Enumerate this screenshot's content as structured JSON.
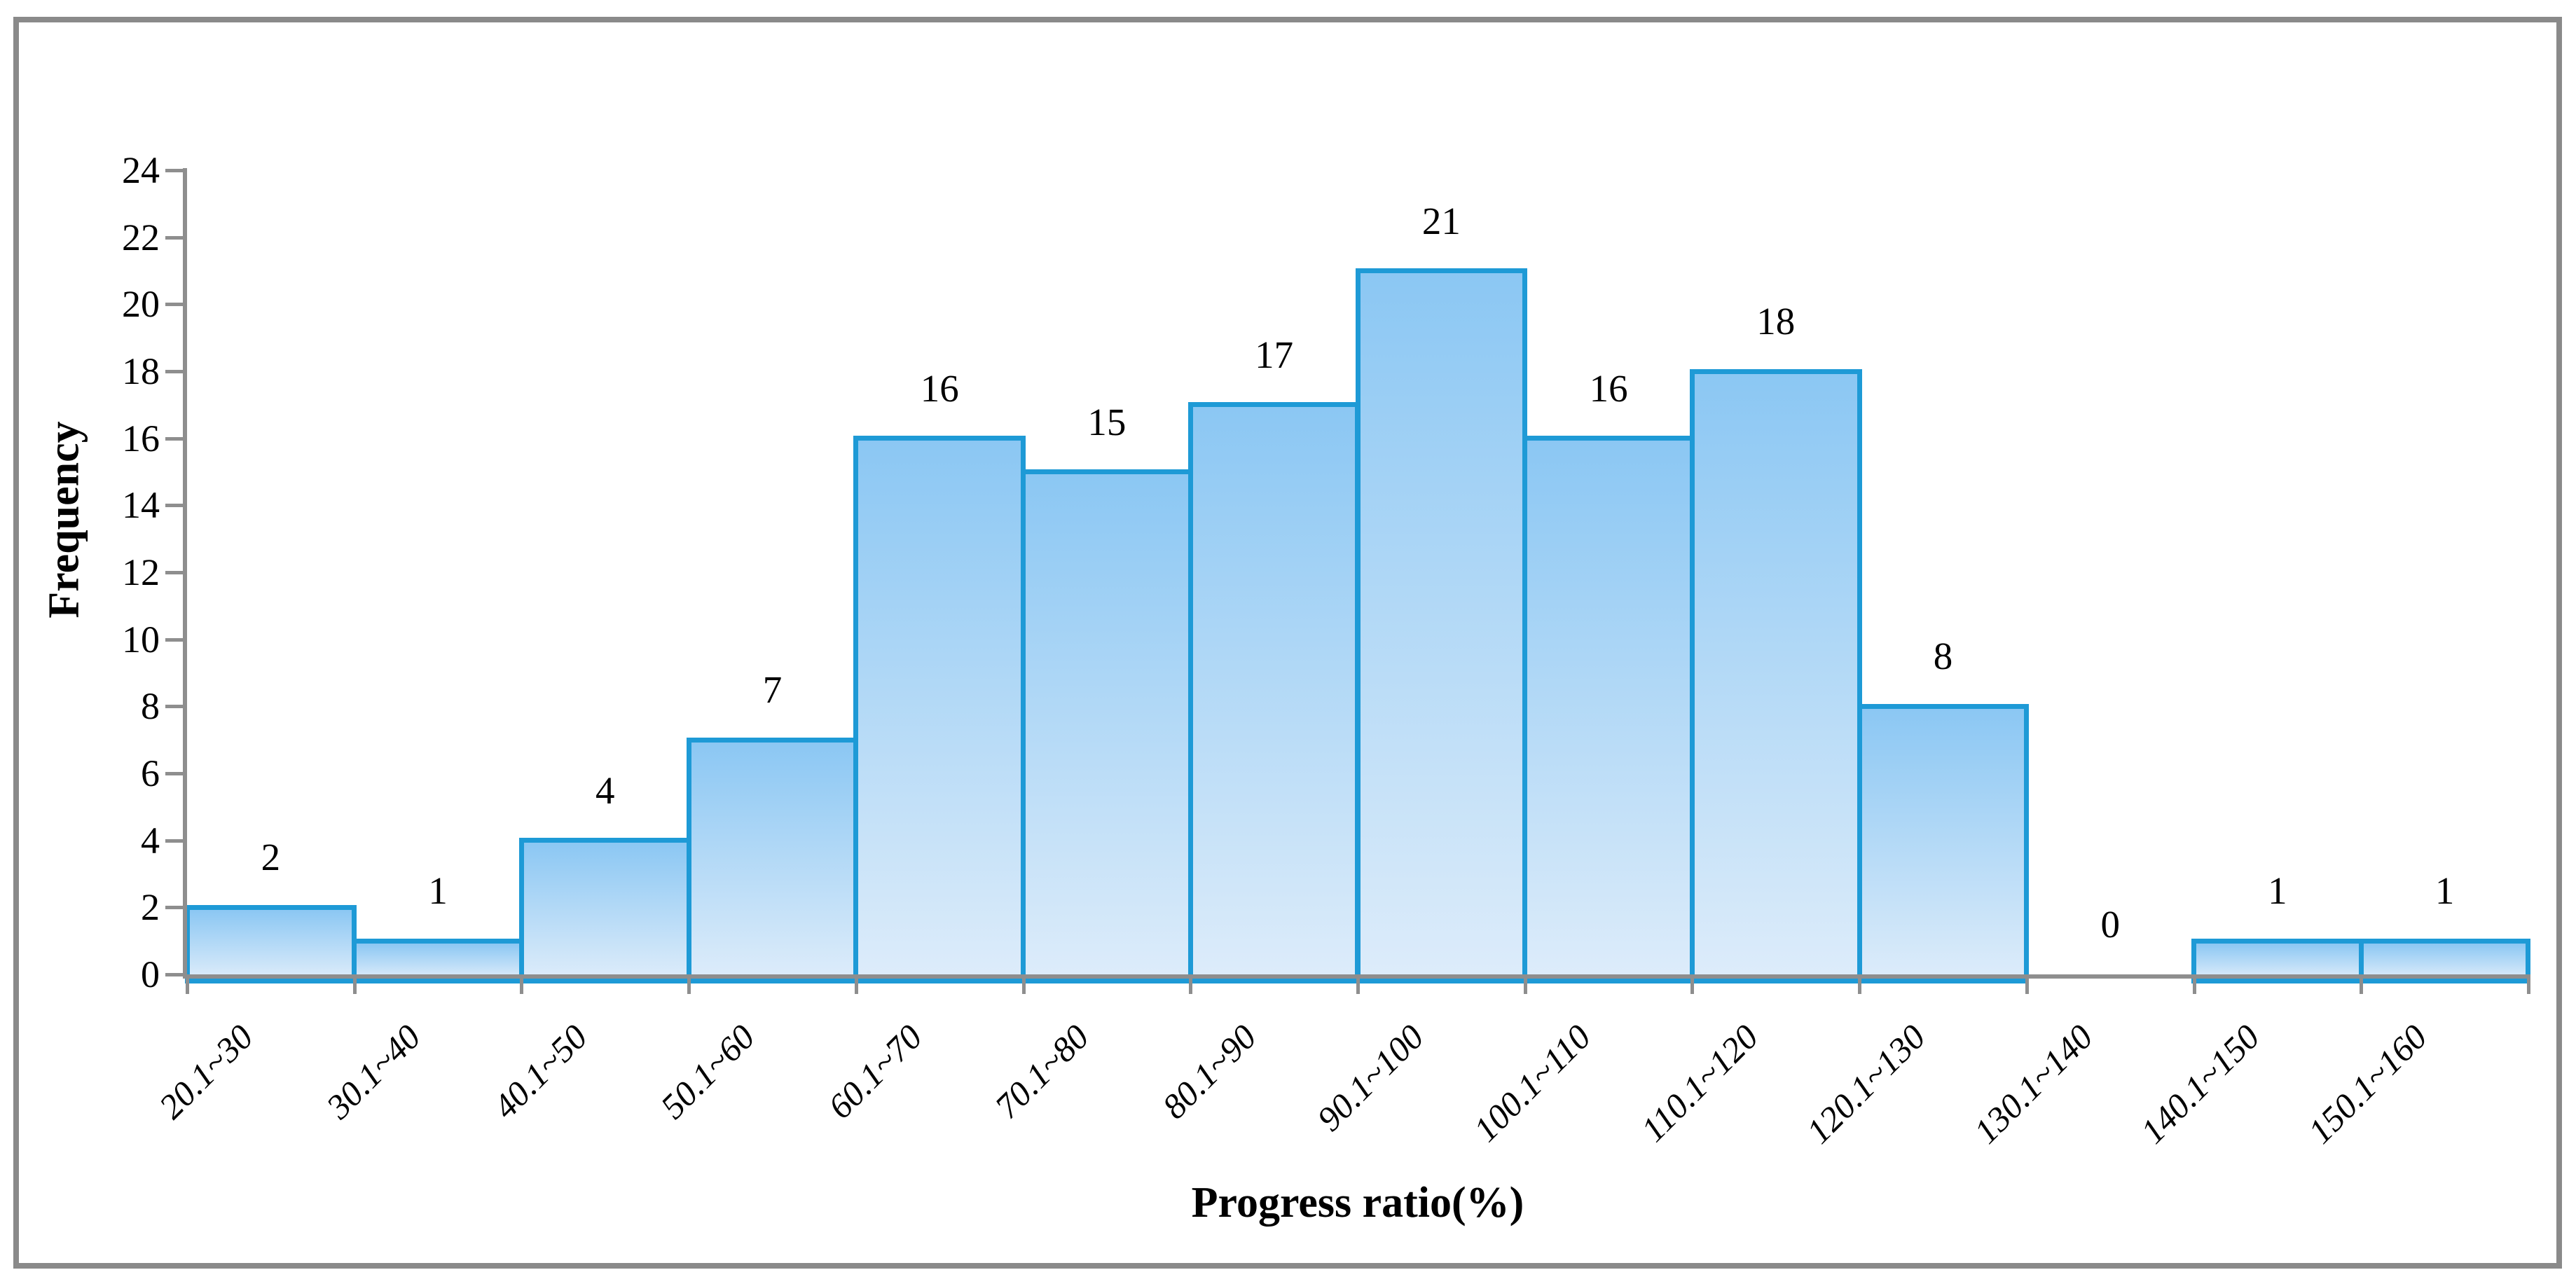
{
  "chart_data": {
    "type": "bar",
    "subtype": "histogram",
    "title": "",
    "categories": [
      "20.1~30",
      "30.1~40",
      "40.1~50",
      "50.1~60",
      "60.1~70",
      "70.1~80",
      "80.1~90",
      "90.1~100",
      "100.1~110",
      "110.1~120",
      "120.1~130",
      "130.1~140",
      "140.1~150",
      "150.1~160"
    ],
    "values": [
      2,
      1,
      4,
      7,
      16,
      15,
      17,
      21,
      16,
      18,
      8,
      0,
      1,
      1
    ],
    "data_labels": [
      "2",
      "1",
      "4",
      "7",
      "16",
      "15",
      "17",
      "21",
      "16",
      "18",
      "8",
      "0",
      "1",
      "1"
    ],
    "xlabel": "Progress ratio(%)",
    "ylabel": "Frequency",
    "ylim": [
      0,
      24
    ],
    "ytick_step": 2,
    "ytick_labels": [
      "0",
      "2",
      "4",
      "6",
      "8",
      "10",
      "12",
      "14",
      "16",
      "18",
      "20",
      "22",
      "24"
    ],
    "grid": false,
    "legend": "none",
    "colors": {
      "bar_border": "#1E9AD6",
      "bar_fill_top": "#8BC7F3",
      "bar_fill_bottom": "#DDECFA",
      "axis_line": "#8E8E8E",
      "figure_border": "#8A8A8A",
      "text": "#000000"
    }
  }
}
